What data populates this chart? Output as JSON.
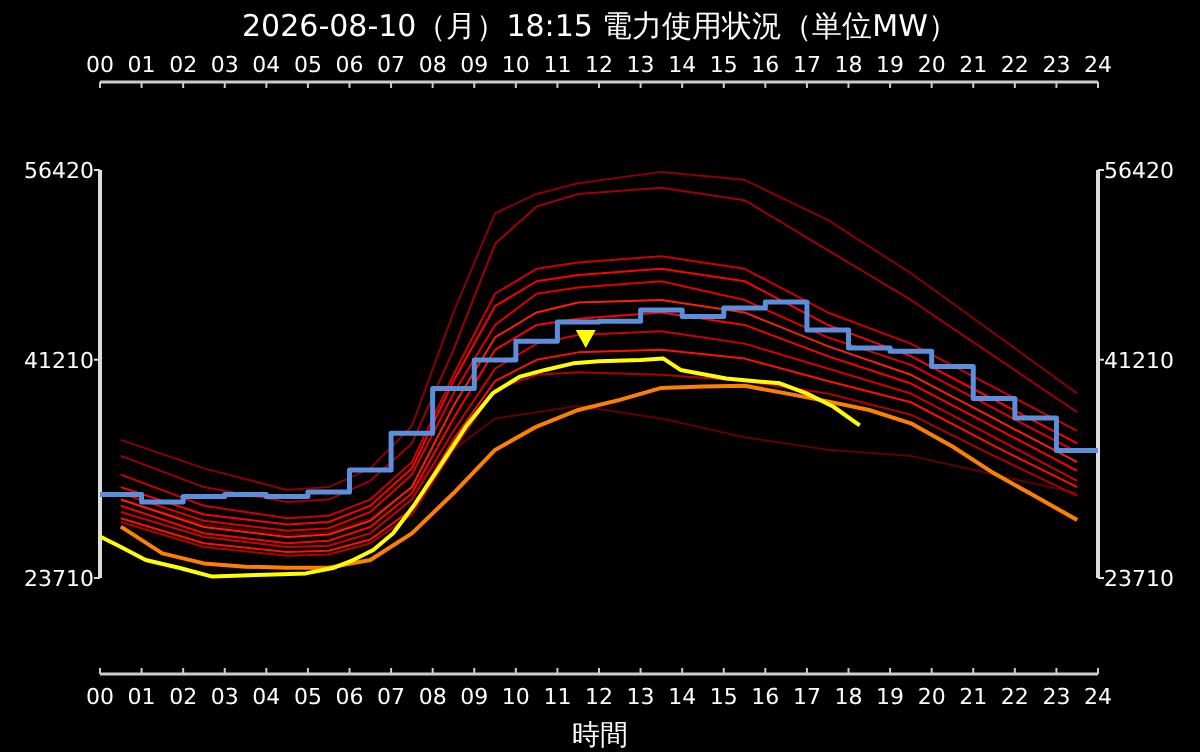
{
  "chart_data": {
    "type": "line",
    "title": "2026-08-10（月）18:15 電力使用状況（単位MW）",
    "xlabel": "時間",
    "xlim": [
      0,
      24
    ],
    "x2lim": [
      0,
      24
    ],
    "xticks": [
      {
        "value": 0,
        "label": "00"
      },
      {
        "value": 1,
        "label": "01"
      },
      {
        "value": 2,
        "label": "02"
      },
      {
        "value": 3,
        "label": "03"
      },
      {
        "value": 4,
        "label": "04"
      },
      {
        "value": 5,
        "label": "05"
      },
      {
        "value": 6,
        "label": "06"
      },
      {
        "value": 7,
        "label": "07"
      },
      {
        "value": 8,
        "label": "08"
      },
      {
        "value": 9,
        "label": "09"
      },
      {
        "value": 10,
        "label": "10"
      },
      {
        "value": 11,
        "label": "11"
      },
      {
        "value": 12,
        "label": "12"
      },
      {
        "value": 13,
        "label": "13"
      },
      {
        "value": 14,
        "label": "14"
      },
      {
        "value": 15,
        "label": "15"
      },
      {
        "value": 16,
        "label": "16"
      },
      {
        "value": 17,
        "label": "17"
      },
      {
        "value": 18,
        "label": "18"
      },
      {
        "value": 19,
        "label": "19"
      },
      {
        "value": 20,
        "label": "20"
      },
      {
        "value": 21,
        "label": "21"
      },
      {
        "value": 22,
        "label": "22"
      },
      {
        "value": 23,
        "label": "23"
      },
      {
        "value": 24,
        "label": "24"
      }
    ],
    "x2ticks": [
      {
        "value": 0,
        "label": "00"
      },
      {
        "value": 1,
        "label": "01"
      },
      {
        "value": 2,
        "label": "02"
      },
      {
        "value": 3,
        "label": "03"
      },
      {
        "value": 4,
        "label": "04"
      },
      {
        "value": 5,
        "label": "05"
      },
      {
        "value": 6,
        "label": "06"
      },
      {
        "value": 7,
        "label": "07"
      },
      {
        "value": 8,
        "label": "08"
      },
      {
        "value": 9,
        "label": "09"
      },
      {
        "value": 10,
        "label": "10"
      },
      {
        "value": 11,
        "label": "11"
      },
      {
        "value": 12,
        "label": "12"
      },
      {
        "value": 13,
        "label": "13"
      },
      {
        "value": 14,
        "label": "14"
      },
      {
        "value": 15,
        "label": "15"
      },
      {
        "value": 16,
        "label": "16"
      },
      {
        "value": 17,
        "label": "17"
      },
      {
        "value": 18,
        "label": "18"
      },
      {
        "value": 19,
        "label": "19"
      },
      {
        "value": 20,
        "label": "20"
      },
      {
        "value": 21,
        "label": "21"
      },
      {
        "value": 22,
        "label": "22"
      },
      {
        "value": 23,
        "label": "23"
      },
      {
        "value": 24,
        "label": "24"
      }
    ],
    "ylim": [
      23710,
      56420
    ],
    "yticks": [
      23710,
      41210,
      56420
    ],
    "y2lim": [
      23710,
      56420
    ],
    "y2ticks": [
      23710,
      41210,
      56420
    ],
    "marker": "none",
    "series": [
      {
        "color": "#8b0000",
        "x": [
          0.5,
          2.5,
          4.5,
          5.5,
          6.5,
          7.5,
          8.5,
          9.5,
          10.5,
          11.5,
          13.5,
          15.5,
          17.5,
          19.5,
          21.5,
          23.5
        ],
        "values": [
          34780,
          32500,
          30770,
          31000,
          32500,
          35900,
          45000,
          52950,
          54500,
          55360,
          56270,
          55630,
          52420,
          48140,
          43330,
          38510
        ]
      },
      {
        "color": "#a00000",
        "x": [
          0.5,
          2.5,
          4.5,
          5.5,
          6.5,
          7.5,
          8.5,
          9.5,
          10.5,
          11.5,
          13.5,
          15.5,
          17.5,
          19.5,
          21.5,
          23.5
        ],
        "values": [
          33500,
          31000,
          29800,
          30000,
          31500,
          34500,
          42000,
          50500,
          53500,
          54500,
          55000,
          54000,
          50000,
          46000,
          41500,
          37000
        ]
      },
      {
        "color": "#600000",
        "x": [
          0.5,
          2.5,
          4.5,
          5.5,
          6.5,
          7.5,
          8.5,
          9.5,
          10.5,
          11.5,
          13.5,
          15.5,
          17.5,
          19.5,
          21.5,
          23.5
        ],
        "values": [
          30000,
          28000,
          27200,
          27400,
          28500,
          31000,
          34000,
          36500,
          37000,
          37500,
          36500,
          35000,
          34000,
          33500,
          32000,
          30500
        ]
      },
      {
        "color": "#cc0000",
        "x": [
          0.5,
          2.5,
          4.5,
          5.5,
          6.5,
          7.5,
          8.5,
          9.5,
          10.5,
          11.5,
          13.5,
          15.5,
          17.5,
          19.5,
          21.5,
          23.5
        ],
        "values": [
          32000,
          29500,
          28500,
          28700,
          30000,
          33000,
          40000,
          46500,
          48500,
          49000,
          49500,
          48500,
          45000,
          42500,
          39000,
          35500
        ]
      },
      {
        "color": "#ff0000",
        "x": [
          0.5,
          2.5,
          4.5,
          5.5,
          6.5,
          7.5,
          8.5,
          9.5,
          10.5,
          11.5,
          13.5,
          15.5,
          17.5,
          19.5,
          21.5,
          23.5
        ],
        "values": [
          31000,
          28800,
          28000,
          28200,
          29500,
          32500,
          39500,
          45500,
          47500,
          48000,
          48500,
          47500,
          44000,
          41500,
          38000,
          34500
        ]
      },
      {
        "color": "#e00000",
        "x": [
          0.5,
          2.5,
          4.5,
          5.5,
          6.5,
          7.5,
          8.5,
          9.5,
          10.5,
          11.5,
          13.5,
          15.5,
          17.5,
          19.5,
          21.5,
          23.5
        ],
        "values": [
          30500,
          28300,
          27500,
          27700,
          29000,
          32000,
          38500,
          44000,
          46500,
          47000,
          47500,
          46000,
          43000,
          40800,
          37300,
          33800
        ]
      },
      {
        "color": "#ff2000",
        "x": [
          0.5,
          2.5,
          4.5,
          5.5,
          6.5,
          7.5,
          8.5,
          9.5,
          10.5,
          11.5,
          13.5,
          15.5,
          17.5,
          19.5,
          21.5,
          23.5
        ],
        "values": [
          30000,
          27800,
          27000,
          27200,
          28300,
          31000,
          37500,
          43000,
          45000,
          45800,
          46000,
          45000,
          42300,
          40000,
          36500,
          33000
        ]
      },
      {
        "color": "#ff0000",
        "x": [
          0.5,
          2.5,
          4.5,
          5.5,
          6.5,
          7.5,
          8.5,
          9.5,
          10.5,
          11.5,
          13.5,
          15.5,
          17.5,
          19.5,
          21.5,
          23.5
        ],
        "values": [
          29500,
          27300,
          26500,
          26700,
          27800,
          30500,
          36500,
          42000,
          44000,
          44500,
          45000,
          44000,
          41500,
          39300,
          35800,
          32300
        ]
      },
      {
        "color": "#d00000",
        "x": [
          0.5,
          2.5,
          4.5,
          5.5,
          6.5,
          7.5,
          8.5,
          9.5,
          10.5,
          11.5,
          13.5,
          15.5,
          17.5,
          19.5,
          21.5,
          23.5
        ],
        "values": [
          29000,
          27000,
          26200,
          26300,
          27300,
          30000,
          35500,
          40500,
          42500,
          43200,
          43500,
          42500,
          40500,
          38500,
          35000,
          31500
        ]
      },
      {
        "color": "#ff1000",
        "x": [
          0.5,
          2.5,
          4.5,
          5.5,
          6.5,
          7.5,
          8.5,
          9.5,
          10.5,
          11.5,
          13.5,
          15.5,
          17.5,
          19.5,
          21.5,
          23.5
        ],
        "values": [
          28500,
          26500,
          25800,
          25900,
          26800,
          29200,
          34800,
          39500,
          41200,
          41800,
          42000,
          41300,
          39500,
          37800,
          34300,
          31000
        ]
      },
      {
        "color": "#b00000",
        "x": [
          0.5,
          2.5,
          4.5,
          5.5,
          6.5,
          7.5,
          8.5,
          9.5,
          10.5,
          11.5,
          13.5,
          15.5,
          17.5,
          19.5,
          21.5,
          23.5
        ],
        "values": [
          28200,
          26200,
          25500,
          25600,
          26500,
          28800,
          34000,
          38800,
          40000,
          40200,
          40000,
          39500,
          38500,
          36800,
          33500,
          30300
        ]
      },
      {
        "color": "#ff8000",
        "x": [
          0.5,
          1.5,
          2.5,
          3.5,
          4.5,
          5.5,
          6.5,
          7.5,
          8.5,
          9.5,
          10.5,
          11.5,
          12.5,
          13.5,
          14.5,
          15.5,
          16.5,
          17.5,
          18.5,
          19.5,
          20.5,
          21.5,
          22.5,
          23.5
        ],
        "values": [
          27830,
          25680,
          24880,
          24620,
          24540,
          24540,
          25150,
          27290,
          30500,
          33980,
          35850,
          37180,
          37990,
          38950,
          39060,
          39120,
          38510,
          37870,
          37180,
          36110,
          34250,
          32100,
          30240,
          28360
        ]
      },
      {
        "type": "step",
        "color": "#5b8fdc",
        "x": [
          0,
          1,
          2,
          3,
          4,
          5,
          6,
          7,
          8,
          9,
          10,
          11,
          12,
          13,
          14,
          15,
          16,
          17,
          18,
          19,
          20,
          21,
          22,
          23,
          24
        ],
        "values": [
          30400,
          29810,
          30240,
          30400,
          30240,
          30610,
          32370,
          35310,
          38900,
          41190,
          42690,
          44240,
          44290,
          45200,
          44670,
          45360,
          45840,
          43600,
          42150,
          41880,
          40660,
          38100,
          36540,
          33930,
          33930
        ]
      },
      {
        "color": "#ffff00",
        "x": [
          0,
          0.48,
          1.1,
          1.92,
          2.7,
          3.97,
          4.95,
          5.6,
          6.09,
          6.57,
          7.05,
          7.53,
          8.17,
          8.8,
          9.44,
          10.1,
          10.7,
          11.38,
          12,
          13,
          13.55,
          13.96,
          15.06,
          16.35,
          16.99,
          17.63,
          18.27
        ],
        "values": [
          27030,
          26230,
          25150,
          24510,
          23820,
          23980,
          24080,
          24510,
          25150,
          25960,
          27300,
          29440,
          32640,
          35850,
          38510,
          39860,
          40390,
          40920,
          41080,
          41190,
          41300,
          40390,
          39700,
          39320,
          38510,
          37460,
          35950
        ]
      },
      {
        "type": "scatter",
        "marker": "triangle",
        "color": "#ffff00",
        "x": [
          11.68
        ],
        "values": [
          42800
        ]
      }
    ]
  }
}
